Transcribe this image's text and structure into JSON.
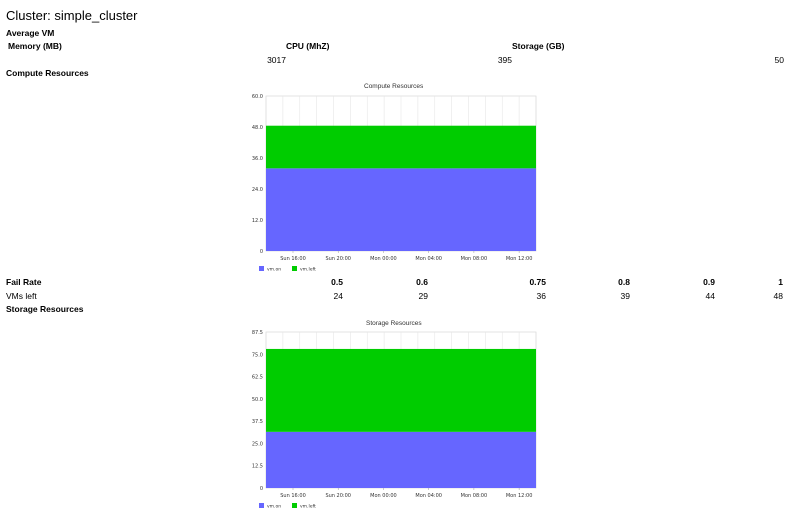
{
  "page": {
    "title": "Cluster: simple_cluster"
  },
  "average_vm": {
    "heading": "Average VM",
    "headers": [
      "Memory (MB)",
      "CPU (MhZ)",
      "Storage (GB)"
    ],
    "values": [
      "3017",
      "395",
      "50"
    ]
  },
  "compute": {
    "heading": "Compute Resources",
    "chart_title": "Compute Resources"
  },
  "fail_table": {
    "row1_label": "Fail Rate",
    "row2_label": "VMs left",
    "fail_rates": [
      "0.5",
      "0.6",
      "0.75",
      "0.8",
      "0.9",
      "1"
    ],
    "vms_left": [
      "24",
      "29",
      "36",
      "39",
      "44",
      "48"
    ]
  },
  "storage": {
    "heading": "Storage Resources",
    "chart_title": "Storage Resources"
  },
  "chart_data": [
    {
      "type": "area",
      "title": "Compute Resources",
      "x": [
        "Sun 16:00",
        "Sun 20:00",
        "Mon 00:00",
        "Mon 04:00",
        "Mon 08:00",
        "Mon 12:00"
      ],
      "ylim": [
        0,
        60
      ],
      "yticks": [
        "0",
        "12.0",
        "24.0",
        "36.0",
        "48.0",
        "60.0"
      ],
      "stacked": true,
      "grid": true,
      "legend_position": "bottom-left",
      "series": [
        {
          "name": "vm.on",
          "value": 32,
          "color": "#6666ff"
        },
        {
          "name": "vm.left",
          "value": 16.5,
          "color": "#00cc00"
        }
      ]
    },
    {
      "type": "area",
      "title": "Storage Resources",
      "x": [
        "Sun 16:00",
        "Sun 20:00",
        "Mon 00:00",
        "Mon 04:00",
        "Mon 08:00",
        "Mon 12:00"
      ],
      "ylim": [
        0,
        87.5
      ],
      "yticks": [
        "0",
        "12.5",
        "25.0",
        "37.5",
        "50.0",
        "62.5",
        "75.0",
        "87.5"
      ],
      "stacked": true,
      "grid": true,
      "legend_position": "bottom-left",
      "series": [
        {
          "name": "vm.on",
          "value": 31.5,
          "color": "#6666ff"
        },
        {
          "name": "vm.left",
          "value": 46.5,
          "color": "#00cc00"
        }
      ]
    }
  ]
}
